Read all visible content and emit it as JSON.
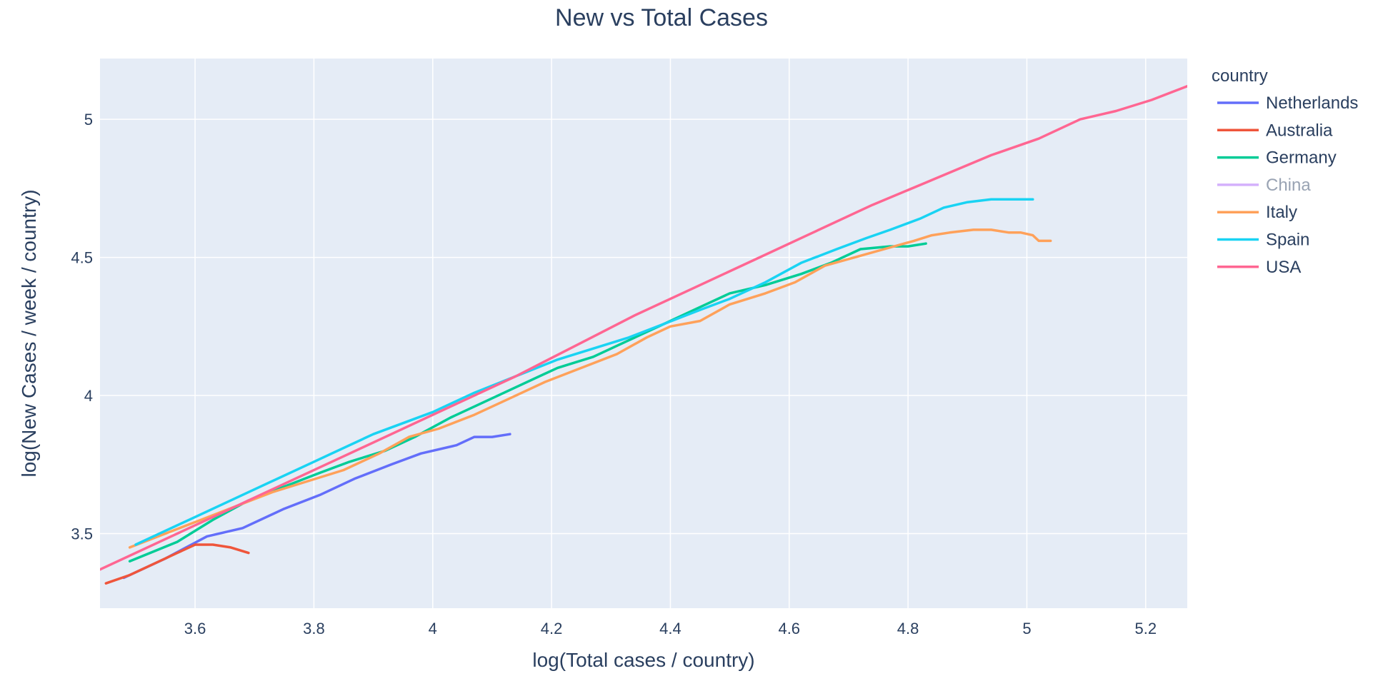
{
  "chart_data": {
    "type": "line",
    "title": "New vs Total Cases",
    "xlabel": "log(Total cases / country)",
    "ylabel": "log(New Cases / week / country)",
    "xlim": [
      3.44,
      5.27
    ],
    "ylim": [
      3.23,
      5.22
    ],
    "x_ticks": [
      3.6,
      3.8,
      4.0,
      4.2,
      4.4,
      4.6,
      4.8,
      5.0,
      5.2
    ],
    "x_tick_labels": [
      "3.6",
      "3.8",
      "4",
      "4.2",
      "4.4",
      "4.6",
      "4.8",
      "5",
      "5.2"
    ],
    "y_ticks": [
      3.5,
      4.0,
      4.5,
      5.0
    ],
    "y_tick_labels": [
      "3.5",
      "4",
      "4.5",
      "5"
    ],
    "grid": true,
    "legend_title": "country",
    "legend_position": "right",
    "series": [
      {
        "name": "Netherlands",
        "color": "#636efa",
        "visible": true,
        "x": [
          3.48,
          3.55,
          3.62,
          3.68,
          3.75,
          3.81,
          3.87,
          3.93,
          3.98,
          4.04,
          4.07,
          4.1,
          4.13
        ],
        "y": [
          3.34,
          3.41,
          3.49,
          3.52,
          3.59,
          3.64,
          3.7,
          3.75,
          3.79,
          3.82,
          3.85,
          3.85,
          3.86
        ]
      },
      {
        "name": "Australia",
        "color": "#ef553b",
        "visible": true,
        "x": [
          3.45,
          3.49,
          3.53,
          3.57,
          3.6,
          3.63,
          3.66,
          3.69
        ],
        "y": [
          3.32,
          3.35,
          3.39,
          3.43,
          3.46,
          3.46,
          3.45,
          3.43
        ]
      },
      {
        "name": "Germany",
        "color": "#00cc96",
        "visible": true,
        "x": [
          3.49,
          3.57,
          3.63,
          3.69,
          3.75,
          3.81,
          3.86,
          3.92,
          3.97,
          4.03,
          4.09,
          4.15,
          4.21,
          4.27,
          4.33,
          4.39,
          4.45,
          4.5,
          4.56,
          4.62,
          4.67,
          4.72,
          4.77,
          4.8,
          4.83
        ],
        "y": [
          3.4,
          3.47,
          3.55,
          3.62,
          3.67,
          3.72,
          3.76,
          3.8,
          3.85,
          3.92,
          3.98,
          4.04,
          4.1,
          4.14,
          4.2,
          4.26,
          4.32,
          4.37,
          4.4,
          4.44,
          4.48,
          4.53,
          4.54,
          4.54,
          4.55
        ]
      },
      {
        "name": "China",
        "color": "#ab63fa",
        "visible": false,
        "x": [],
        "y": []
      },
      {
        "name": "Italy",
        "color": "#ffa15a",
        "visible": true,
        "x": [
          3.49,
          3.55,
          3.61,
          3.67,
          3.73,
          3.79,
          3.85,
          3.91,
          3.96,
          4.01,
          4.07,
          4.13,
          4.19,
          4.25,
          4.31,
          4.36,
          4.4,
          4.45,
          4.5,
          4.56,
          4.61,
          4.66,
          4.71,
          4.76,
          4.81,
          4.84,
          4.87,
          4.91,
          4.94,
          4.97,
          4.99,
          5.01,
          5.02,
          5.04
        ],
        "y": [
          3.45,
          3.5,
          3.55,
          3.6,
          3.65,
          3.69,
          3.73,
          3.79,
          3.85,
          3.88,
          3.93,
          3.99,
          4.05,
          4.1,
          4.15,
          4.21,
          4.25,
          4.27,
          4.33,
          4.37,
          4.41,
          4.47,
          4.5,
          4.53,
          4.56,
          4.58,
          4.59,
          4.6,
          4.6,
          4.59,
          4.59,
          4.58,
          4.56,
          4.56
        ]
      },
      {
        "name": "Spain",
        "color": "#19d3f3",
        "visible": true,
        "x": [
          3.5,
          3.6,
          3.7,
          3.8,
          3.9,
          4.0,
          4.07,
          4.14,
          4.21,
          4.27,
          4.33,
          4.39,
          4.45,
          4.5,
          4.56,
          4.62,
          4.68,
          4.73,
          4.77,
          4.82,
          4.86,
          4.9,
          4.94,
          4.97,
          5.01
        ],
        "y": [
          3.46,
          3.56,
          3.66,
          3.76,
          3.86,
          3.94,
          4.01,
          4.07,
          4.13,
          4.17,
          4.21,
          4.26,
          4.31,
          4.35,
          4.41,
          4.48,
          4.53,
          4.57,
          4.6,
          4.64,
          4.68,
          4.7,
          4.71,
          4.71,
          4.71
        ]
      },
      {
        "name": "USA",
        "color": "#ff6692",
        "visible": true,
        "x": [
          3.44,
          3.54,
          3.64,
          3.74,
          3.84,
          3.94,
          4.04,
          4.14,
          4.24,
          4.34,
          4.44,
          4.54,
          4.64,
          4.74,
          4.84,
          4.94,
          5.02,
          5.09,
          5.15,
          5.21,
          5.27
        ],
        "y": [
          3.37,
          3.47,
          3.57,
          3.67,
          3.77,
          3.87,
          3.97,
          4.07,
          4.18,
          4.29,
          4.39,
          4.49,
          4.59,
          4.69,
          4.78,
          4.87,
          4.93,
          5.0,
          5.03,
          5.07,
          5.12
        ]
      }
    ]
  }
}
